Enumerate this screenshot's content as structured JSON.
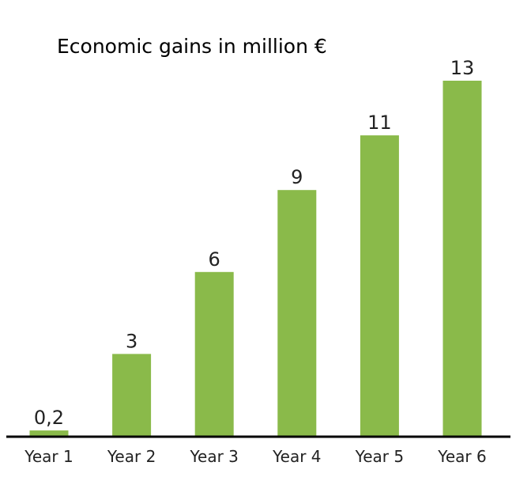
{
  "chart_data": {
    "type": "bar",
    "title": "Economic gains in million €",
    "xlabel": "",
    "ylabel": "",
    "categories": [
      "Year 1",
      "Year 2",
      "Year 3",
      "Year 4",
      "Year 5",
      "Year 6"
    ],
    "values": [
      0.2,
      3,
      6,
      9,
      11,
      13
    ],
    "value_labels": [
      "0,2",
      "3",
      "6",
      "9",
      "11",
      "13"
    ],
    "ylim": [
      0,
      13
    ],
    "grid": false,
    "legend": "none",
    "bar_color": "#8aba4a",
    "axis_color": "#000000"
  }
}
